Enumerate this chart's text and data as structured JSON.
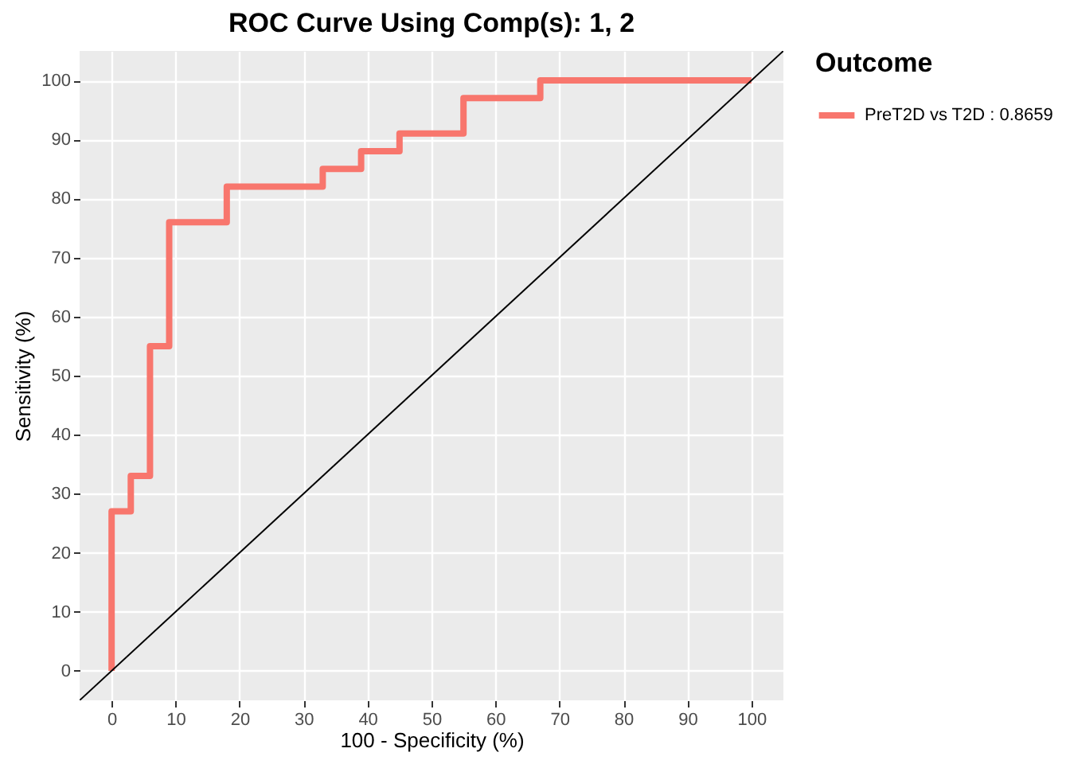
{
  "chart_data": {
    "type": "line",
    "title": "ROC Curve Using Comp(s): 1, 2",
    "xlabel": "100 - Specificity (%)",
    "ylabel": "Sensitivity (%)",
    "legend_title": "Outcome",
    "legend": "right",
    "grid": true,
    "xlim": [
      -5,
      105
    ],
    "ylim": [
      -5,
      105
    ],
    "xticks": [
      0,
      10,
      20,
      30,
      40,
      50,
      60,
      70,
      80,
      90,
      100
    ],
    "yticks": [
      0,
      10,
      20,
      30,
      40,
      50,
      60,
      70,
      80,
      90,
      100
    ],
    "series": [
      {
        "name": "PreT2D vs T2D : 0.8659",
        "color": "#f8766d",
        "x": [
          0,
          0,
          3,
          3,
          6,
          6,
          9,
          9,
          18,
          18,
          33,
          33,
          39,
          39,
          45,
          45,
          55,
          55,
          67,
          67,
          100
        ],
        "values": [
          0,
          27,
          27,
          33,
          33,
          55,
          55,
          76,
          76,
          82,
          82,
          85,
          85,
          88,
          88,
          91,
          91,
          97,
          97,
          100,
          100
        ]
      },
      {
        "color": "#000000",
        "x": [
          -5,
          105
        ],
        "values": [
          -5,
          105
        ]
      }
    ]
  }
}
